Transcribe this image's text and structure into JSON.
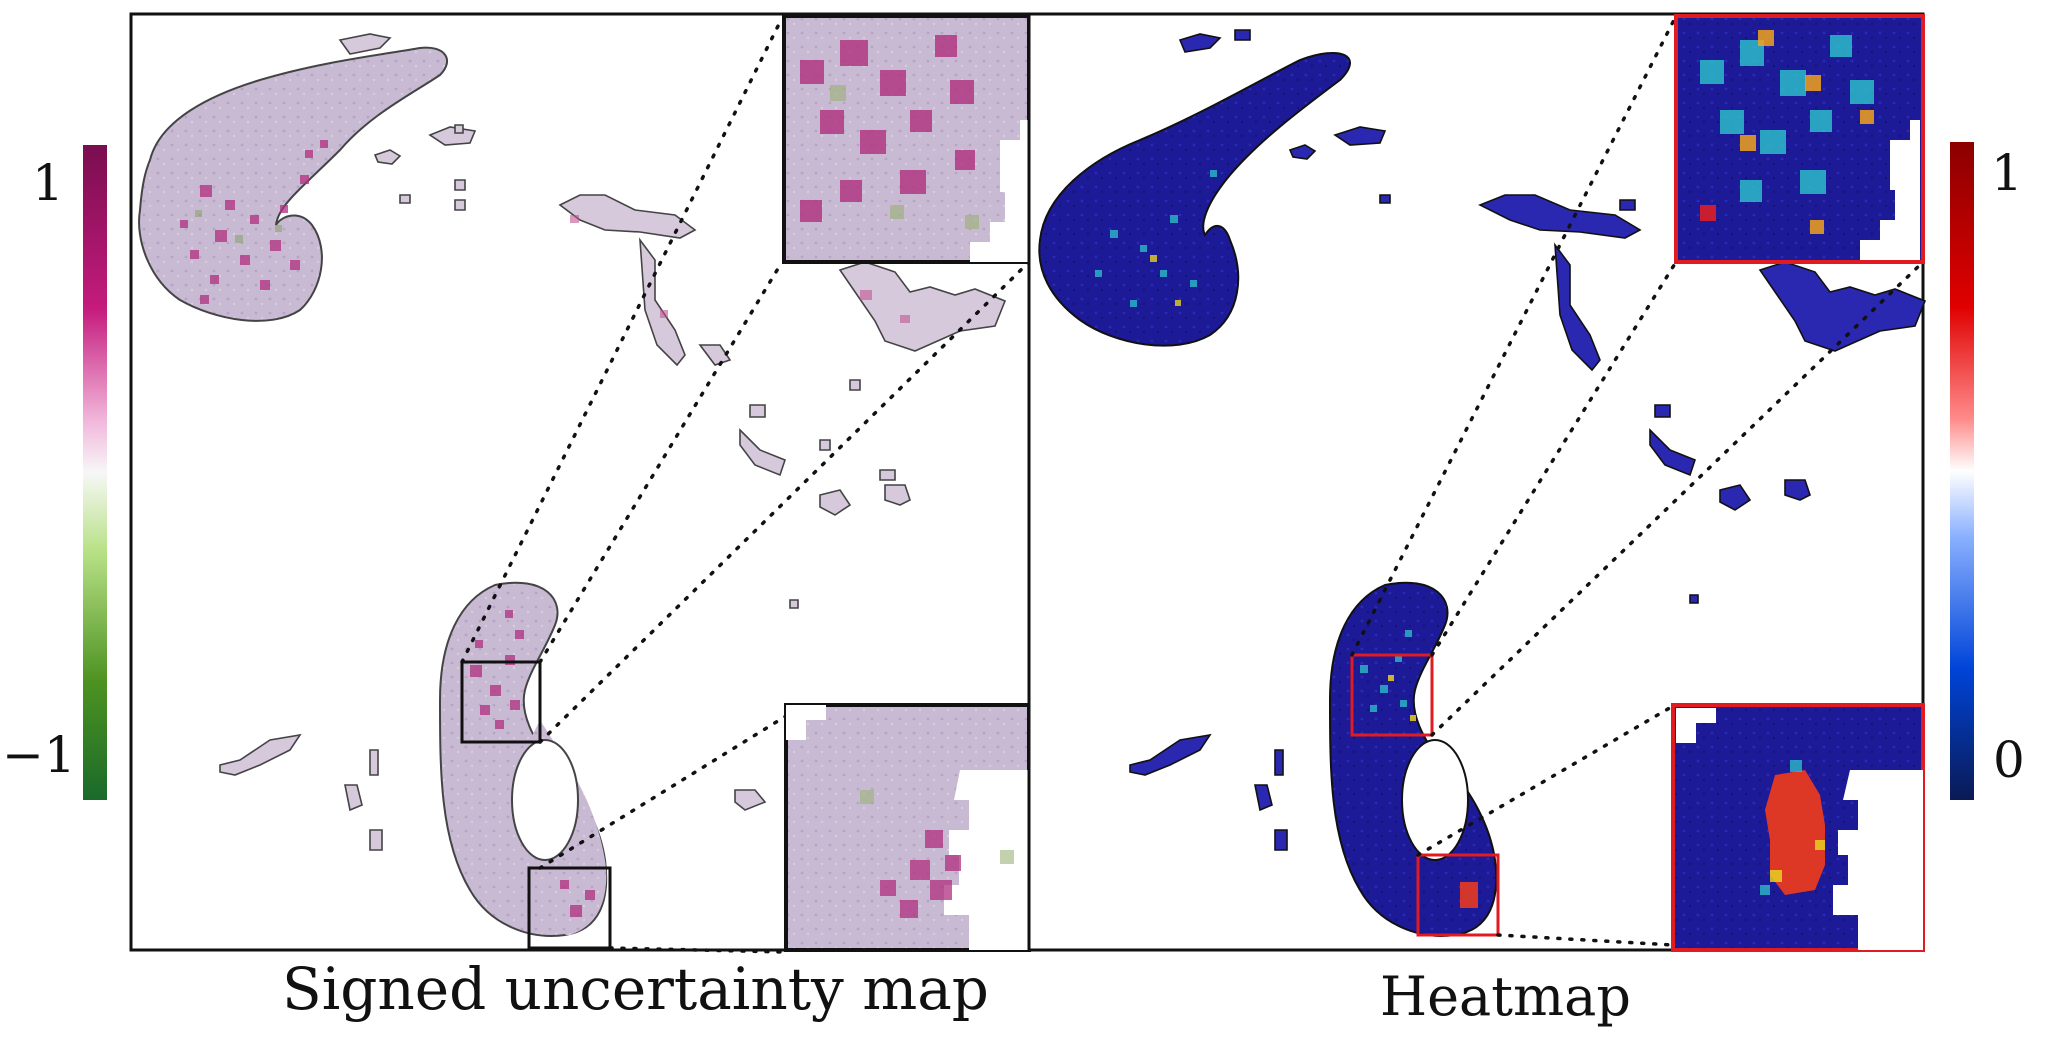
{
  "panels": {
    "left": {
      "caption": "Signed uncertainty map",
      "colorbar": {
        "max_label": "1",
        "min_label": "−1",
        "colors": [
          "#7a0d4f",
          "#c51b7d",
          "#f1b6da",
          "#f7f7f7",
          "#b8e186",
          "#4d9221",
          "#1a6a2a"
        ]
      }
    },
    "right": {
      "caption": "Heatmap",
      "colorbar": {
        "max_label": "1",
        "min_label": "0",
        "colors": [
          "#8b0000",
          "#e00000",
          "#ff6b6b",
          "#ffffff",
          "#6b9bff",
          "#0044d8",
          "#0a1a55"
        ]
      }
    }
  },
  "colors": {
    "tissue_left": "#cbbcd4",
    "hot_left": "#b0307f",
    "tissue_right": "#1d1a9a",
    "hot_right": "#e83a20",
    "zoom_box_left": "#111111",
    "zoom_box_right": "#e11b22"
  }
}
